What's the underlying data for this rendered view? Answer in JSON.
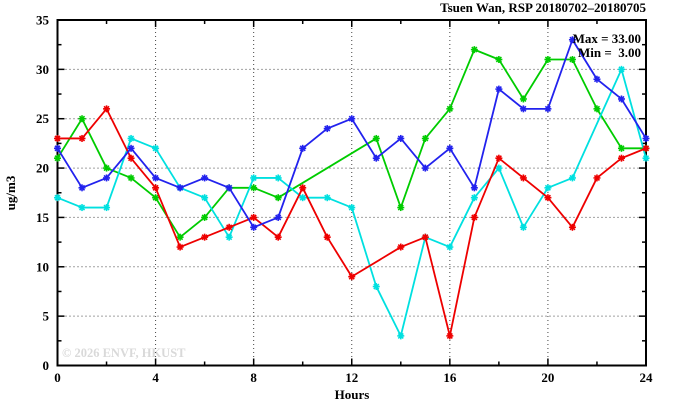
{
  "header": {
    "title": "Tsuen Wan, RSP 20180702–20180705"
  },
  "annotation": {
    "max_label": "Max = 33.00",
    "min_label": "Min =  3.00"
  },
  "watermark": "© 2026 ENVF, HKUST",
  "chart_data": {
    "type": "line",
    "title": "Tsuen Wan, RSP 20180702–20180705",
    "xlabel": "Hours",
    "ylabel": "ug/m3",
    "xlim": [
      0,
      24
    ],
    "ylim": [
      0,
      35
    ],
    "xticks_major": [
      0,
      4,
      8,
      12,
      16,
      20,
      24
    ],
    "xticks_minor": [
      2,
      6,
      10,
      14,
      18,
      22
    ],
    "yticks_major": [
      0,
      5,
      10,
      15,
      20,
      25,
      30,
      35
    ],
    "yticks_minor": [
      2.5,
      7.5,
      12.5,
      17.5,
      22.5,
      27.5,
      32.5
    ],
    "grid": true,
    "grid_x_at": [
      4,
      8,
      12,
      16,
      20
    ],
    "grid_y_at": [
      5,
      10,
      15,
      20,
      25,
      30
    ],
    "legend_position": "none",
    "marker": "asterisk",
    "x": [
      0,
      1,
      2,
      3,
      4,
      5,
      6,
      7,
      8,
      9,
      10,
      11,
      12,
      13,
      14,
      15,
      16,
      17,
      18,
      19,
      20,
      21,
      22,
      23,
      24
    ],
    "series": [
      {
        "name": "green-series",
        "color": "#00cc00",
        "values": [
          21,
          25,
          20,
          19,
          17,
          13,
          15,
          18,
          18,
          17,
          null,
          null,
          null,
          23,
          16,
          23,
          26,
          32,
          31,
          27,
          31,
          31,
          26,
          22,
          22
        ]
      },
      {
        "name": "cyan-series",
        "color": "#00e0e0",
        "values": [
          17,
          16,
          16,
          23,
          22,
          18,
          17,
          13,
          19,
          19,
          17,
          17,
          16,
          8,
          3,
          13,
          12,
          17,
          20,
          14,
          18,
          19,
          null,
          30,
          21
        ]
      },
      {
        "name": "red-series",
        "color": "#ee0000",
        "values": [
          23,
          23,
          26,
          21,
          18,
          12,
          13,
          14,
          15,
          13,
          18,
          13,
          9,
          null,
          12,
          13,
          3,
          15,
          21,
          19,
          17,
          14,
          19,
          21,
          22
        ]
      },
      {
        "name": "blue-series",
        "color": "#2222ee",
        "values": [
          22,
          18,
          19,
          22,
          19,
          18,
          19,
          18,
          14,
          15,
          22,
          24,
          25,
          21,
          23,
          20,
          22,
          18,
          28,
          26,
          26,
          33,
          29,
          27,
          23
        ]
      }
    ],
    "max_value": 33.0,
    "min_value": 3.0
  }
}
